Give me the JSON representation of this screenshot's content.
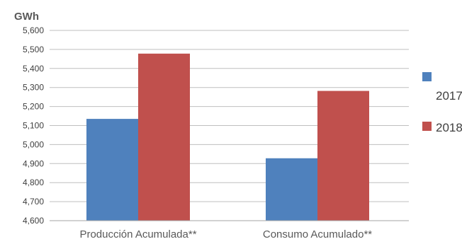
{
  "chart_data": {
    "type": "bar",
    "unit_label": "GWh",
    "categories": [
      "Producción Acumulada**",
      "Consumo Acumulado**"
    ],
    "series": [
      {
        "name": "2017",
        "values": [
          5135,
          4928
        ],
        "color": "#4F81BD"
      },
      {
        "name": "2018",
        "values": [
          5478,
          5282
        ],
        "color": "#C0504D"
      }
    ],
    "ylim": [
      4600,
      5600
    ],
    "yticks": [
      "4,600",
      "4,700",
      "4,800",
      "4,900",
      "5,000",
      "5,100",
      "5,200",
      "5,300",
      "5,400",
      "5,500",
      "5,600"
    ],
    "grid": true,
    "legend_position": "right"
  }
}
